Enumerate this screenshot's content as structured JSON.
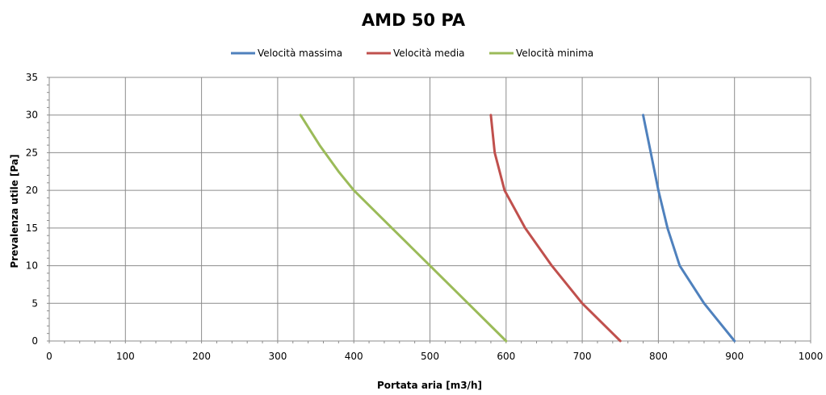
{
  "chart_data": {
    "type": "line",
    "title": "AMD 50 PA",
    "xlabel": "Portata aria  [m3/h]",
    "ylabel": "Prevalenza utile [Pa]",
    "xlim": [
      0,
      1000
    ],
    "ylim": [
      0,
      35
    ],
    "xticks": [
      0,
      100,
      200,
      300,
      400,
      500,
      600,
      700,
      800,
      900,
      1000
    ],
    "yticks": [
      0,
      5,
      10,
      15,
      20,
      25,
      30,
      35
    ],
    "grid": true,
    "legend_position": "top",
    "series": [
      {
        "name": "Velocità massima",
        "color": "#4f81bd",
        "points": [
          [
            780,
            30
          ],
          [
            790,
            25
          ],
          [
            800,
            20
          ],
          [
            812,
            15
          ],
          [
            828,
            10
          ],
          [
            860,
            5
          ],
          [
            900,
            0
          ]
        ]
      },
      {
        "name": "Velocità media",
        "color": "#c0504d",
        "points": [
          [
            580,
            30
          ],
          [
            585,
            25
          ],
          [
            598,
            20
          ],
          [
            625,
            15
          ],
          [
            660,
            10
          ],
          [
            700,
            5
          ],
          [
            750,
            0
          ]
        ]
      },
      {
        "name": "Velocità minima",
        "color": "#9bbb59",
        "points": [
          [
            330,
            30
          ],
          [
            355,
            26
          ],
          [
            380,
            22.5
          ],
          [
            400,
            20
          ],
          [
            450,
            15
          ],
          [
            500,
            10
          ],
          [
            550,
            5
          ],
          [
            600,
            0
          ]
        ]
      }
    ]
  }
}
